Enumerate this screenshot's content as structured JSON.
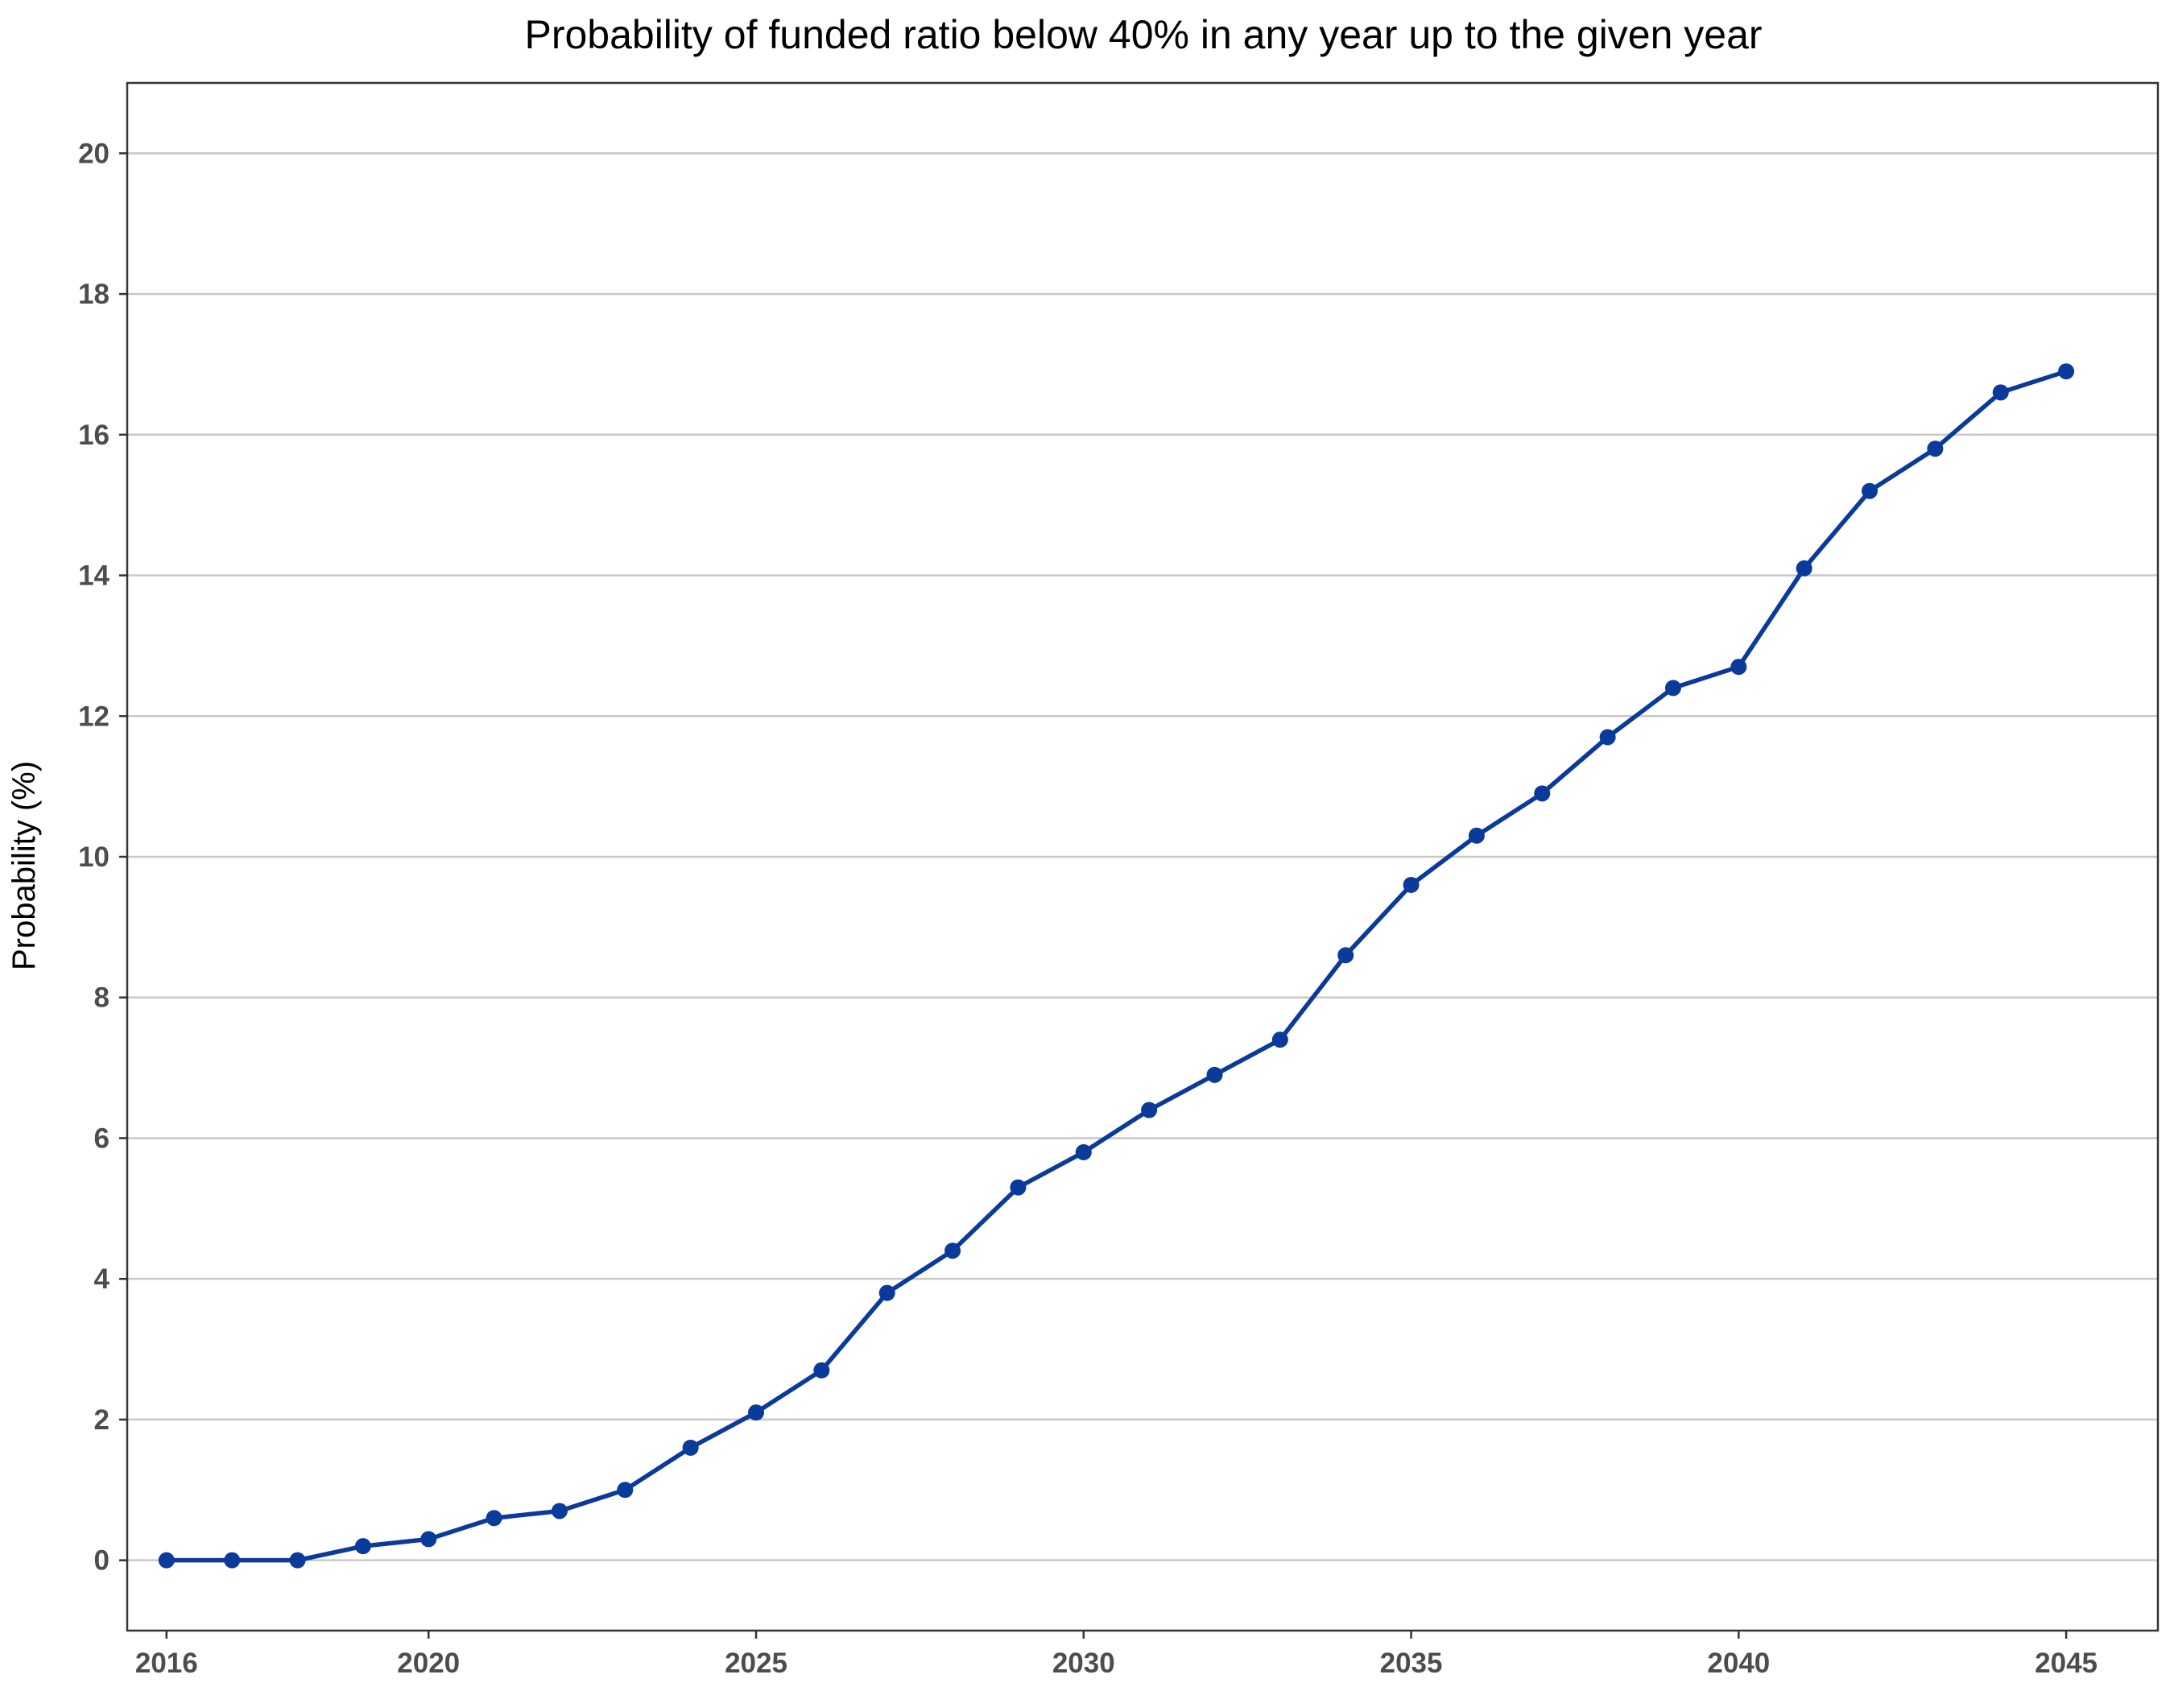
{
  "chart_data": {
    "type": "line",
    "title": "Probability of funded ratio below 40% in any year up to the given year",
    "xlabel": "",
    "ylabel": "Probability (%)",
    "x": [
      2016,
      2017,
      2018,
      2019,
      2020,
      2021,
      2022,
      2023,
      2024,
      2025,
      2026,
      2027,
      2028,
      2029,
      2030,
      2031,
      2032,
      2033,
      2034,
      2035,
      2036,
      2037,
      2038,
      2039,
      2040,
      2041,
      2042,
      2043,
      2044,
      2045
    ],
    "series": [
      {
        "values": [
          0.0,
          0.0,
          0.0,
          0.2,
          0.3,
          0.6,
          0.7,
          1.0,
          1.6,
          2.1,
          2.7,
          3.8,
          4.4,
          5.3,
          5.8,
          6.4,
          6.9,
          7.4,
          8.6,
          9.6,
          10.3,
          10.9,
          11.7,
          12.4,
          12.7,
          14.1,
          15.2,
          15.8,
          16.6,
          16.9
        ]
      }
    ],
    "xlim": [
      2015.4,
      2046.4
    ],
    "ylim": [
      -1,
      21
    ],
    "xticks": [
      "2016",
      "2020",
      "2025",
      "2030",
      "2035",
      "2040",
      "2045"
    ],
    "yticks": [
      "0",
      "2",
      "4",
      "6",
      "8",
      "10",
      "12",
      "14",
      "16",
      "18",
      "20"
    ],
    "grid": "horizontal",
    "legend": "none",
    "line_color": "#0a3a9a",
    "grid_color": "#c8c8c8",
    "tick_color": "#4d4d4d"
  }
}
